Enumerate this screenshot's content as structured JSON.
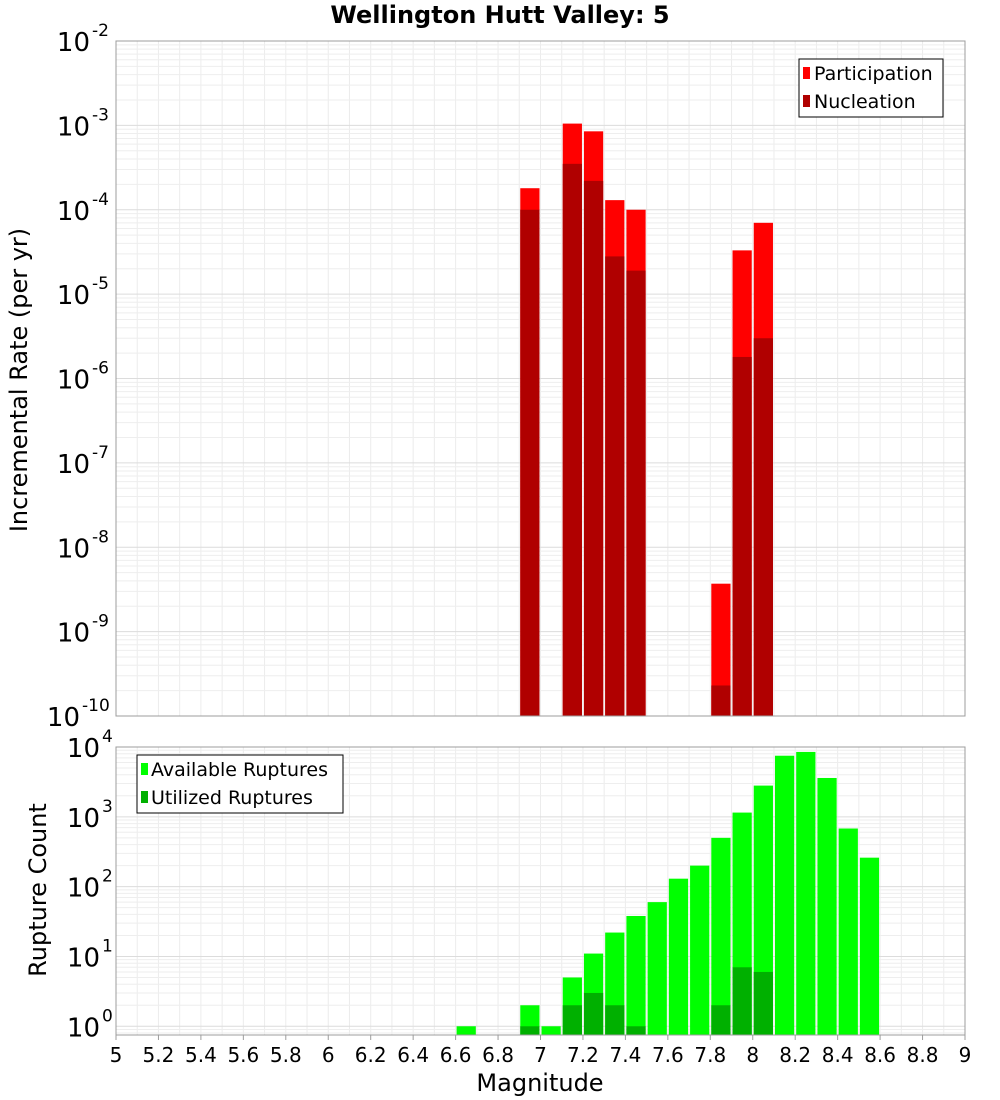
{
  "chart_data": [
    {
      "type": "bar",
      "title": "Wellington Hutt Valley: 5",
      "xlabel": "",
      "ylabel": "Incremental Rate (per yr)",
      "xlim": [
        5,
        9
      ],
      "ylim": [
        1e-10,
        0.01
      ],
      "yscale": "log",
      "grid": true,
      "legend": "top-right",
      "bin_width": 0.1,
      "series": [
        {
          "name": "Participation",
          "color": "#ff0000",
          "x": [
            6.95,
            7.15,
            7.25,
            7.35,
            7.45,
            7.85,
            7.95,
            8.05
          ],
          "values": [
            0.00018,
            0.00105,
            0.00085,
            0.00013,
            0.0001,
            3.7e-09,
            3.3e-05,
            7e-05
          ]
        },
        {
          "name": "Nucleation",
          "color": "#b00000",
          "x": [
            6.95,
            7.15,
            7.25,
            7.35,
            7.45,
            7.85,
            7.95,
            8.05
          ],
          "values": [
            0.0001,
            0.00035,
            0.00022,
            2.8e-05,
            1.9e-05,
            2.3e-10,
            1.8e-06,
            3e-06
          ]
        }
      ],
      "y_ticks": [
        {
          "base": "10",
          "exp": "-2",
          "value": 0.01
        },
        {
          "base": "10",
          "exp": "-3",
          "value": 0.001
        },
        {
          "base": "10",
          "exp": "-4",
          "value": 0.0001
        },
        {
          "base": "10",
          "exp": "-5",
          "value": 1e-05
        },
        {
          "base": "10",
          "exp": "-6",
          "value": 1e-06
        },
        {
          "base": "10",
          "exp": "-7",
          "value": 1e-07
        },
        {
          "base": "10",
          "exp": "-8",
          "value": 1e-08
        },
        {
          "base": "10",
          "exp": "-9",
          "value": 1e-09
        },
        {
          "base": "10",
          "exp": "-10",
          "value": 1e-10
        }
      ]
    },
    {
      "type": "bar",
      "title": "",
      "xlabel": "Magnitude",
      "ylabel": "Rupture Count",
      "xlim": [
        5,
        9
      ],
      "ylim": [
        0.75,
        10000
      ],
      "yscale": "log",
      "grid": true,
      "legend": "top-left",
      "bin_width": 0.1,
      "series": [
        {
          "name": "Available Ruptures",
          "color": "#00ff00",
          "x": [
            6.65,
            6.95,
            7.05,
            7.15,
            7.25,
            7.35,
            7.45,
            7.55,
            7.65,
            7.75,
            7.85,
            7.95,
            8.05,
            8.15,
            8.25,
            8.35,
            8.45,
            8.55
          ],
          "values": [
            1,
            2,
            1,
            5,
            11,
            22,
            38,
            60,
            130,
            200,
            500,
            1150,
            2800,
            7500,
            8500,
            3600,
            680,
            260
          ]
        },
        {
          "name": "Utilized Ruptures",
          "color": "#00b000",
          "x": [
            6.95,
            7.15,
            7.25,
            7.35,
            7.45,
            7.85,
            7.95,
            8.05
          ],
          "values": [
            1,
            2,
            3,
            2,
            1,
            2,
            7,
            6
          ]
        }
      ],
      "y_ticks": [
        {
          "base": "10",
          "exp": "4",
          "value": 10000
        },
        {
          "base": "10",
          "exp": "3",
          "value": 1000
        },
        {
          "base": "10",
          "exp": "2",
          "value": 100
        },
        {
          "base": "10",
          "exp": "1",
          "value": 10
        },
        {
          "base": "10",
          "exp": "0",
          "value": 1
        }
      ],
      "x_ticks": [
        "5",
        "5.2",
        "5.4",
        "5.6",
        "5.8",
        "6",
        "6.2",
        "6.4",
        "6.6",
        "6.8",
        "7",
        "7.2",
        "7.4",
        "7.6",
        "7.8",
        "8",
        "8.2",
        "8.4",
        "8.6",
        "8.8",
        "9"
      ]
    }
  ]
}
